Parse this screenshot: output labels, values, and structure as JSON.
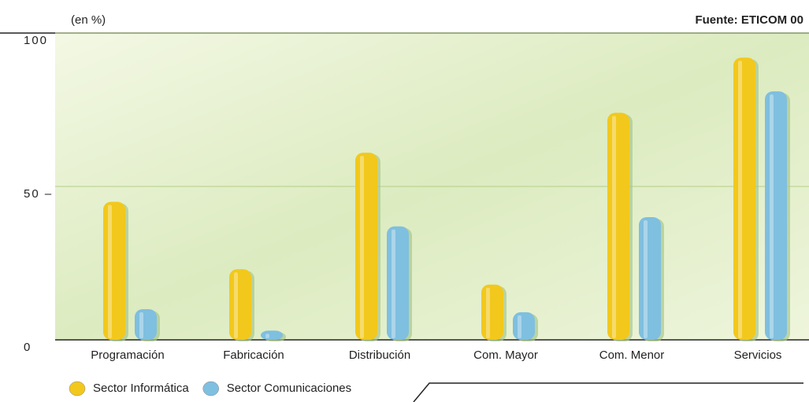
{
  "chart_data": {
    "type": "bar",
    "y_label": "(en %)",
    "source": "Fuente: ETICOM 00",
    "categories": [
      "Programación",
      "Fabricación",
      "Distribución",
      "Com. Mayor",
      "Com. Menor",
      "Servicios"
    ],
    "series": [
      {
        "name": "Sector Informática",
        "color": "#f2c81c",
        "values": [
          45,
          23,
          61,
          18,
          74,
          92
        ]
      },
      {
        "name": "Sector Comunicaciones",
        "color": "#7fbfe0",
        "values": [
          10,
          3,
          37,
          9,
          40,
          81
        ]
      }
    ],
    "ylim": [
      0,
      100
    ],
    "yticks": [
      0,
      {
        "value": 50,
        "label": "50 –"
      },
      100
    ],
    "grid": true
  }
}
